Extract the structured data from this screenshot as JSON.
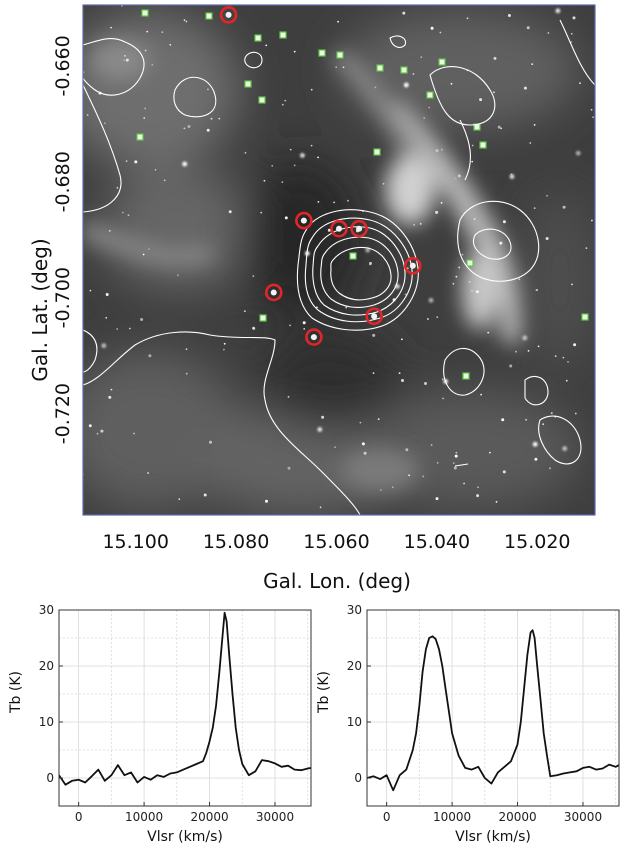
{
  "chart_data": [
    {
      "type": "image",
      "xlabel": "Gal. Lon. (deg)",
      "ylabel": "Gal. Lat. (deg)",
      "x_ticks": [
        "15.100",
        "15.080",
        "15.060",
        "15.040",
        "15.020"
      ],
      "x_tick_values": [
        15.1,
        15.08,
        15.06,
        15.04,
        15.02
      ],
      "y_ticks": [
        "-0.660",
        "-0.680",
        "-0.700",
        "-0.720"
      ],
      "y_tick_values": [
        -0.66,
        -0.68,
        -0.7,
        -0.72
      ],
      "xlim": [
        15.1105,
        15.0085
      ],
      "ylim": [
        -0.6495,
        -0.7375
      ],
      "background": "grayscale infrared image with white contours",
      "markers": [
        {
          "shape": "circle",
          "color": "#e0262a",
          "lon": 15.0815,
          "lat": -0.6512
        },
        {
          "shape": "circle",
          "color": "#e0262a",
          "lon": 15.0665,
          "lat": -0.6867
        },
        {
          "shape": "circle",
          "color": "#e0262a",
          "lon": 15.0595,
          "lat": -0.6881
        },
        {
          "shape": "circle",
          "color": "#e0262a",
          "lon": 15.0555,
          "lat": -0.6881
        },
        {
          "shape": "circle",
          "color": "#e0262a",
          "lon": 15.0448,
          "lat": -0.6945
        },
        {
          "shape": "circle",
          "color": "#e0262a",
          "lon": 15.0725,
          "lat": -0.6991
        },
        {
          "shape": "circle",
          "color": "#e0262a",
          "lon": 15.0525,
          "lat": -0.7032
        },
        {
          "shape": "circle",
          "color": "#e0262a",
          "lon": 15.0645,
          "lat": -0.7068
        }
      ]
    },
    {
      "type": "line",
      "xlabel": "Vlsr (km/s)",
      "ylabel": "Tb (K)",
      "xlim": [
        -3000,
        35500
      ],
      "ylim": [
        -5,
        30
      ],
      "x_ticks": [
        "0",
        "10000",
        "20000",
        "30000"
      ],
      "x_tick_values": [
        0,
        10000,
        20000,
        30000
      ],
      "y_ticks": [
        "0",
        "10",
        "20",
        "30"
      ],
      "y_tick_values": [
        0,
        10,
        20,
        30
      ],
      "grid": true,
      "series": [
        {
          "x": [
            -3000,
            -2000,
            -1000,
            0,
            1000,
            2000,
            3000,
            4000,
            5000,
            6000,
            7000,
            8000,
            9000,
            10000,
            11000,
            12000,
            13000,
            14000,
            15000,
            16000,
            17000,
            18000,
            19000,
            19500,
            20000,
            20500,
            21000,
            21500,
            22000,
            22300,
            22600,
            23000,
            23500,
            24000,
            24500,
            25000,
            26000,
            27000,
            28000,
            29000,
            30000,
            31000,
            32000,
            33000,
            34000,
            35000,
            35500
          ],
          "y": [
            0.5,
            -1.2,
            -0.5,
            -0.3,
            -0.8,
            0.3,
            1.5,
            -0.5,
            0.5,
            2.3,
            0.5,
            1.0,
            -0.8,
            0.2,
            -0.3,
            0.5,
            0.2,
            0.8,
            1.0,
            1.5,
            2.0,
            2.5,
            3.0,
            4.5,
            6.5,
            9.0,
            13.0,
            19.0,
            25.5,
            29.5,
            28.0,
            22.0,
            15.0,
            9.0,
            5.0,
            2.5,
            0.5,
            1.2,
            3.2,
            3.0,
            2.6,
            2.0,
            2.2,
            1.5,
            1.4,
            1.7,
            1.8
          ]
        }
      ]
    },
    {
      "type": "line",
      "xlabel": "Vlsr (km/s)",
      "ylabel": "Tb (K)",
      "xlim": [
        -3000,
        35500
      ],
      "ylim": [
        -5,
        30
      ],
      "x_ticks": [
        "0",
        "10000",
        "20000",
        "30000"
      ],
      "x_tick_values": [
        0,
        10000,
        20000,
        30000
      ],
      "y_ticks": [
        "0",
        "10",
        "20",
        "30"
      ],
      "y_tick_values": [
        0,
        10,
        20,
        30
      ],
      "grid": true,
      "series": [
        {
          "x": [
            -3000,
            -2000,
            -1000,
            0,
            1000,
            2000,
            3000,
            4000,
            4500,
            5000,
            5500,
            6000,
            6500,
            7000,
            7500,
            8000,
            8500,
            9000,
            9500,
            10000,
            11000,
            12000,
            13000,
            14000,
            15000,
            16000,
            17000,
            18000,
            19000,
            20000,
            20500,
            21000,
            21500,
            22000,
            22300,
            22600,
            23000,
            23500,
            24000,
            24500,
            25000,
            26000,
            27000,
            28000,
            29000,
            30000,
            31000,
            32000,
            33000,
            34000,
            35000,
            35500
          ],
          "y": [
            0.0,
            0.3,
            -0.2,
            0.5,
            -2.2,
            0.5,
            1.5,
            5.0,
            8.0,
            13.0,
            19.0,
            23.0,
            25.0,
            25.3,
            24.8,
            23.0,
            20.0,
            16.0,
            12.0,
            8.0,
            4.0,
            1.8,
            1.5,
            2.0,
            0.0,
            -1.0,
            1.0,
            2.0,
            3.0,
            6.0,
            10.0,
            16.0,
            22.0,
            26.0,
            26.4,
            25.0,
            20.0,
            14.0,
            8.0,
            4.0,
            0.3,
            0.5,
            0.8,
            1.0,
            1.2,
            1.8,
            2.0,
            1.5,
            1.7,
            2.4,
            2.0,
            2.3
          ]
        }
      ]
    }
  ]
}
